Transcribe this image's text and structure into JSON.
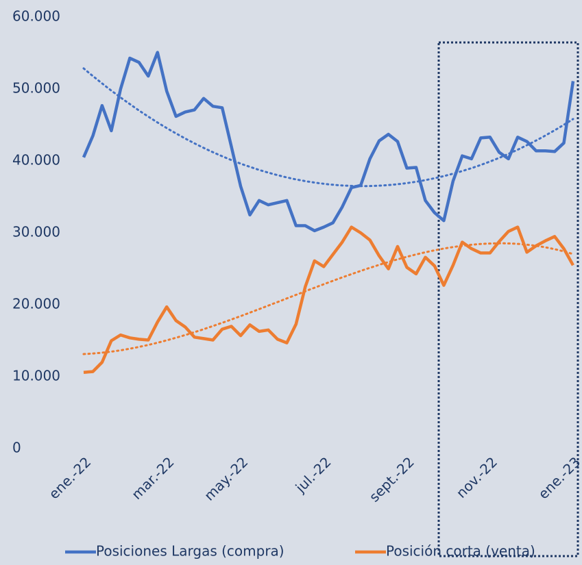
{
  "chart_data": {
    "type": "line",
    "categories": [
      "ene.-22",
      null,
      null,
      null,
      null,
      null,
      null,
      null,
      null,
      "mar.-22",
      null,
      null,
      null,
      null,
      null,
      null,
      null,
      "may.-22",
      null,
      null,
      null,
      null,
      null,
      null,
      null,
      null,
      "jul.-22",
      null,
      null,
      null,
      null,
      null,
      null,
      null,
      null,
      "sept.-22",
      null,
      null,
      null,
      null,
      null,
      null,
      null,
      null,
      "nov.-22",
      null,
      null,
      null,
      null,
      null,
      null,
      null,
      null,
      "ene.-23"
    ],
    "series": [
      {
        "name": "Posiciones Largas (compra)",
        "color": "#4472c4",
        "values": [
          40500,
          43500,
          47700,
          44200,
          50000,
          54300,
          53700,
          51800,
          55100,
          49700,
          46200,
          46800,
          47100,
          48700,
          47600,
          47400,
          42000,
          36500,
          32500,
          34500,
          33900,
          34200,
          34500,
          31000,
          31000,
          30300,
          30800,
          31400,
          33600,
          36300,
          36600,
          40300,
          42800,
          43700,
          42700,
          39000,
          39100,
          34500,
          32800,
          31700,
          37200,
          40700,
          40300,
          43200,
          43300,
          41200,
          40300,
          43300,
          42700,
          41400,
          41400,
          41300,
          42500,
          51100
        ],
        "trendline": {
          "type": "polynomial",
          "order": 2
        }
      },
      {
        "name": "Posición corta (venta)",
        "color": "#ed7d31",
        "values": [
          10600,
          10700,
          12000,
          15000,
          15800,
          15400,
          15200,
          15100,
          17600,
          19700,
          17800,
          16900,
          15500,
          15300,
          15100,
          16600,
          17000,
          15700,
          17200,
          16300,
          16500,
          15200,
          14700,
          17300,
          22500,
          26100,
          25300,
          27000,
          28700,
          30800,
          30000,
          29000,
          26800,
          25000,
          28100,
          25200,
          24300,
          26600,
          25400,
          22700,
          25500,
          28700,
          27800,
          27200,
          27200,
          28800,
          30200,
          30800,
          27300,
          28200,
          28900,
          29500,
          27800,
          25500
        ],
        "trendline": {
          "type": "polynomial",
          "order": 3
        }
      }
    ],
    "ylim": [
      0,
      60000
    ],
    "yticks": [
      0,
      {
        "value": 10000,
        "label": "10.000"
      },
      {
        "value": 20000,
        "label": "20.000"
      },
      {
        "value": 30000,
        "label": "30.000"
      },
      {
        "value": 40000,
        "label": "40.000"
      },
      {
        "value": 50000,
        "label": "50.000"
      },
      {
        "value": 60000,
        "label": "60.000"
      }
    ],
    "grid": false,
    "legend": "bottom"
  }
}
